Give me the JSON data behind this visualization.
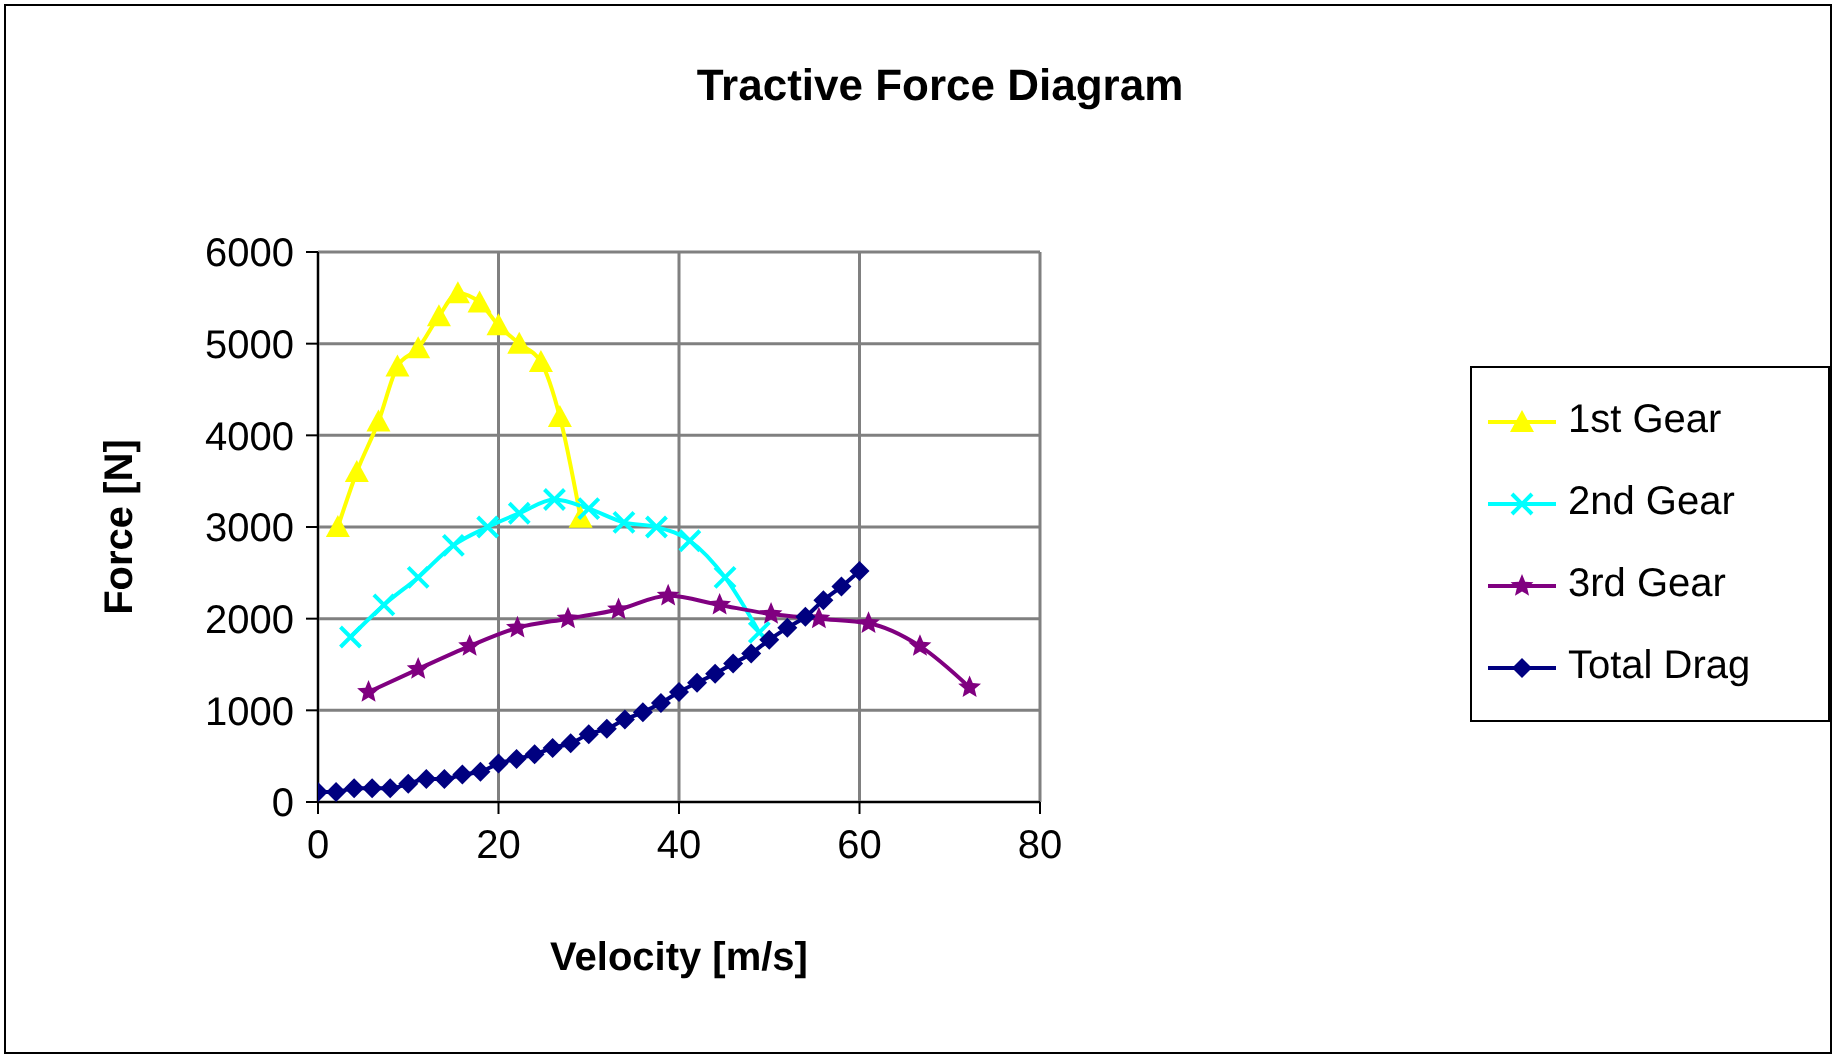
{
  "chart_data": {
    "type": "line",
    "title": "Tractive Force Diagram",
    "xlabel": "Velocity [m/s]",
    "ylabel": "Force [N]",
    "xlim": [
      0,
      80
    ],
    "xticks": [
      0,
      20,
      40,
      60,
      80
    ],
    "ylim": [
      0,
      6000
    ],
    "yticks": [
      0,
      1000,
      2000,
      3000,
      4000,
      5000,
      6000
    ],
    "grid": true,
    "legend": "right",
    "series": [
      {
        "name": "1st Gear",
        "color": "#ffff00",
        "marker": "triangle",
        "x": [
          2.2,
          4.3,
          6.7,
          8.8,
          11.1,
          13.4,
          15.5,
          17.9,
          20.0,
          22.3,
          24.7,
          26.8,
          29.1
        ],
        "values": [
          3000,
          3600,
          4150,
          4750,
          4950,
          5300,
          5550,
          5450,
          5200,
          5000,
          4800,
          4200,
          3100
        ]
      },
      {
        "name": "2nd Gear",
        "color": "#00ffff",
        "marker": "cross",
        "x": [
          3.6,
          7.3,
          11.1,
          15.0,
          18.8,
          22.3,
          26.2,
          30.0,
          33.9,
          37.5,
          41.2,
          45.1,
          48.9
        ],
        "values": [
          1800,
          2150,
          2450,
          2800,
          3000,
          3150,
          3300,
          3200,
          3050,
          3000,
          2850,
          2450,
          1850
        ]
      },
      {
        "name": "3rd Gear",
        "color": "#800080",
        "marker": "star",
        "x": [
          5.6,
          11.1,
          16.8,
          22.1,
          27.7,
          33.3,
          38.8,
          44.5,
          50.2,
          55.5,
          61.0,
          66.7,
          72.2
        ],
        "values": [
          1200,
          1450,
          1700,
          1900,
          2000,
          2100,
          2250,
          2150,
          2050,
          2000,
          1950,
          1700,
          1250
        ]
      },
      {
        "name": "Total Drag",
        "color": "#000080",
        "marker": "diamond",
        "x": [
          0,
          2,
          4,
          6,
          8,
          10,
          12,
          14,
          16,
          18,
          20,
          22,
          24,
          26,
          28,
          30,
          32,
          34,
          36,
          38,
          40,
          42,
          44,
          46,
          48,
          50,
          52,
          54,
          56,
          58,
          60
        ],
        "values": [
          110,
          110,
          150,
          150,
          150,
          200,
          250,
          250,
          300,
          330,
          420,
          470,
          520,
          590,
          640,
          740,
          800,
          900,
          980,
          1080,
          1200,
          1300,
          1400,
          1510,
          1620,
          1770,
          1900,
          2020,
          2200,
          2350,
          2520
        ]
      }
    ]
  }
}
